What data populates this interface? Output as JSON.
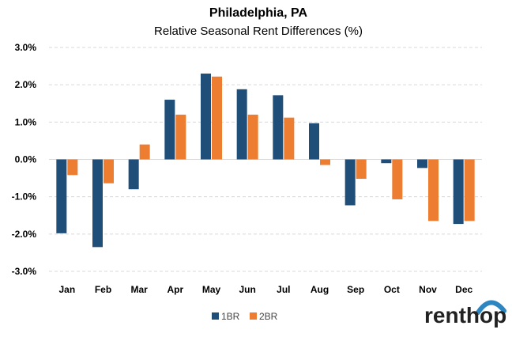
{
  "colors": {
    "series_1": "#1f4e79",
    "series_2": "#ed7d31",
    "logo_arc": "#2e86c1"
  },
  "brand": {
    "logo_text": "renthop"
  },
  "chart_data": {
    "type": "bar",
    "title": "Philadelphia, PA",
    "subtitle": "Relative Seasonal Rent Differences (%)",
    "xlabel": "",
    "ylabel": "",
    "categories": [
      "Jan",
      "Feb",
      "Mar",
      "Apr",
      "May",
      "Jun",
      "Jul",
      "Aug",
      "Sep",
      "Oct",
      "Nov",
      "Dec"
    ],
    "series": [
      {
        "name": "1BR",
        "values": [
          -1.98,
          -2.35,
          -0.8,
          1.6,
          2.3,
          1.88,
          1.72,
          0.97,
          -1.23,
          -0.1,
          -0.23,
          -1.73
        ]
      },
      {
        "name": "2BR",
        "values": [
          -0.42,
          -0.64,
          0.4,
          1.2,
          2.22,
          1.2,
          1.12,
          -0.15,
          -0.52,
          -1.07,
          -1.65,
          -1.65
        ]
      }
    ],
    "ylim": [
      -3,
      3
    ],
    "yticks": [
      "3.0%",
      "2.0%",
      "1.0%",
      "0.0%",
      "-1.0%",
      "-2.0%",
      "-3.0%"
    ],
    "grid": true,
    "legend_position": "bottom"
  }
}
